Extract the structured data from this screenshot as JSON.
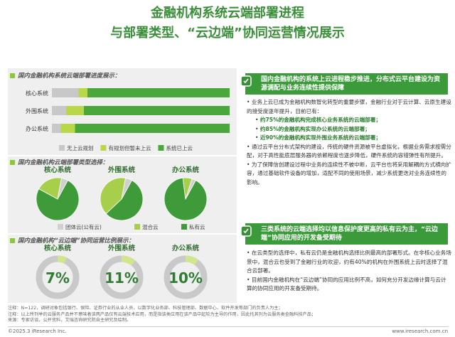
{
  "title": {
    "line1": "金融机构系统云端部署进程",
    "line2": "与部署类型、“云边端”协同运营情况展示"
  },
  "left": {
    "section1_title": "国内金融机构系统云端部署进度展示：",
    "section2_title": "国内金融机构云端部署类型选择：",
    "section3_title": "国内金融机构“云边端”协同运营比例展示："
  },
  "colors": {
    "not_planned": "#c8c8c8",
    "planned": "#b8d84a",
    "done": "#4aa73c",
    "private": "#3f9b3a",
    "hybrid": "#a7cf4b",
    "community": "#d0d0d0",
    "donut_fill": "#cfe68a",
    "donut_rest": "#c9c9c9",
    "accent": "#3b8f3a"
  },
  "chart_data": [
    {
      "type": "bar",
      "stacked": true,
      "orientation": "horizontal",
      "categories": [
        "核心系统",
        "外围系统",
        "办公系统"
      ],
      "series": [
        {
          "name": "无上云规划",
          "values": [
            15,
            8,
            5
          ]
        },
        {
          "name": "有规划但暂未上云",
          "values": [
            5,
            10,
            8
          ]
        },
        {
          "name": "系统已上云",
          "values": [
            80,
            82,
            87
          ]
        }
      ],
      "xlim": [
        0,
        100
      ],
      "legend": "bottom"
    },
    {
      "type": "pie",
      "charts": [
        {
          "title": "核心系统",
          "slices": [
            {
              "name": "私有云",
              "value": 75
            },
            {
              "name": "混合云",
              "value": 20
            },
            {
              "name": "团体云(公有云)",
              "value": 5
            }
          ]
        },
        {
          "title": "外围系统",
          "slices": [
            {
              "name": "私有云",
              "value": 55
            },
            {
              "name": "混合云",
              "value": 40
            },
            {
              "name": "团体云(公有云)",
              "value": 5
            }
          ]
        },
        {
          "title": "办公系统",
          "slices": [
            {
              "name": "私有云",
              "value": 90
            },
            {
              "name": "混合云",
              "value": 7
            },
            {
              "name": "团体云(公有云)",
              "value": 3
            }
          ]
        }
      ],
      "legend_labels": [
        "团体云(公有云)",
        "混合云",
        "私有云"
      ]
    },
    {
      "type": "pie",
      "donut": true,
      "charts": [
        {
          "title": "核心系统",
          "value": 7,
          "label": "7%"
        },
        {
          "title": "外围系统",
          "value": 11,
          "label": "11%"
        },
        {
          "title": "办公系统",
          "value": 10,
          "label": "10%"
        }
      ]
    }
  ],
  "right": {
    "head1": "国内金融机构的系统上云进程稳步推进，分布式云平台建设为资源调配与业务连续性提供保障",
    "p1": "业务上云已成为金融机构数智化转型的重要步骤，金融行业对于云计算、云原生建设的接受度逐年提升，目前已有：",
    "b1": "约75%的金融机构完成核心业务系统的云端部署；",
    "b2": "约85%的金融机构实现办公系统的云端部署；",
    "b3": "近90%的金融机构实现外围业务系统的云端部署；",
    "p2": "通过云平台分布式架构的建设，传统的硬件资源被平台虚拟化，根据业务需求按需分配，对于高性能底层服务器的依赖程度也逐步降低，硬件系统的容错弹性有所提升。",
    "p3": "为了保障信创建设过程中业务的连续性不被中断，云平台也将采用解耦的方式横向扩容，通过基础软件设备的增加，适配不同的使用场景，减少系统更迭对业务连续性的影响。",
    "head2": "三类系统的云端选择均以信息保护度更高的私有云为主，“云边端”协同应用的开发备受期待",
    "p4": "在云类型的选择中，私有云仍是金融机构选择比例最高的部署形式。在非核心业务场景中，混合云也受到了金融行业的欢迎，约有40%的机构在外围系统上云时选择了混合云部署。",
    "p5": "目前国内金融机构在“云边端”协同的应用比例不高，如何充分开发边缘计算与云计算的协同应用的开发备受期待。"
  },
  "footnote": {
    "line1": "注释：N=122，调研对象包括银行、保险、证券行业的从业人员，以数字化业务部、科技管理部、数据中心、软件开发等部门的负责人为主；",
    "line2": "注释：以上所列举的云服务产品并不意味着该两产品仅有云端技术应用，而是指该类应用在该产品中起较为主导的作用，因此托其列为云服务类金融科技产品；",
    "line3": "来源：专家访谈，公开资料，艾瑞咨询研究院自主研究及绘制。"
  },
  "footer": {
    "left": "©2025.3 iResearch Inc.",
    "right": "www.iresearch.com.cn"
  }
}
